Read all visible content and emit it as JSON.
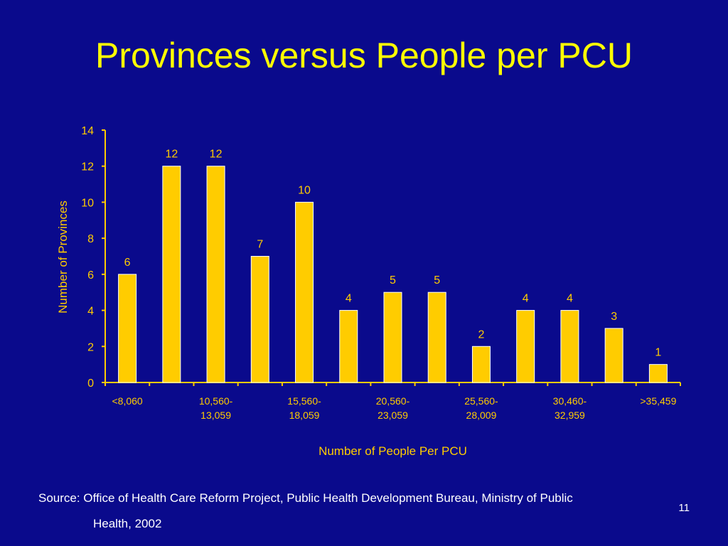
{
  "title": "Provinces versus People per PCU",
  "source": {
    "line1": "Source: Office of Health Care Reform Project, Public Health Development Bureau, Ministry of Public",
    "line2": "Health, 2002"
  },
  "slide_number": "11",
  "colors": {
    "background": "#0a0a8c",
    "bar": "#ffcc00",
    "title": "#ffff00",
    "axis_text": "#ffcc00",
    "white_text": "#ffffff"
  },
  "chart_data": {
    "type": "bar",
    "xlabel": "Number of People Per PCU",
    "ylabel": "Number of Provinces",
    "ylim": [
      0,
      14
    ],
    "yticks": [
      0,
      2,
      4,
      6,
      8,
      10,
      12,
      14
    ],
    "values": [
      6,
      12,
      12,
      7,
      10,
      4,
      5,
      5,
      2,
      4,
      4,
      3,
      1
    ],
    "category_labels": [
      {
        "index": 0,
        "lines": [
          "<8,060"
        ]
      },
      {
        "index": 2,
        "lines": [
          "10,560-",
          "13,059"
        ]
      },
      {
        "index": 4,
        "lines": [
          "15,560-",
          "18,059"
        ]
      },
      {
        "index": 6,
        "lines": [
          "20,560-",
          "23,059"
        ]
      },
      {
        "index": 8,
        "lines": [
          "25,560-",
          "28,009"
        ]
      },
      {
        "index": 10,
        "lines": [
          "30,460-",
          "32,959"
        ]
      },
      {
        "index": 12,
        "lines": [
          ">35,459"
        ]
      }
    ],
    "data_labels": true,
    "grid": false,
    "legend": "none"
  }
}
